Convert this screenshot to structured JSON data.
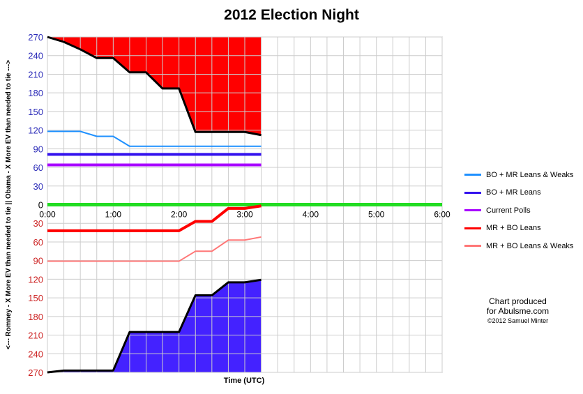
{
  "title": "2012 Election Night",
  "chart_data": {
    "type": "line",
    "title": "2012 Election Night",
    "xlabel": "Time (UTC)",
    "ylabel": "<--- Romney - X More EV than needed to tie || Obama - X More EV than needed to tie --->",
    "xlim": [
      0,
      6
    ],
    "ylim": [
      -270,
      270
    ],
    "grid": true,
    "x_tick_labels": [
      "0:00",
      "1:00",
      "2:00",
      "3:00",
      "4:00",
      "5:00",
      "6:00"
    ],
    "y_tick_labels": [
      "270",
      "240",
      "210",
      "180",
      "150",
      "120",
      "90",
      "60",
      "30",
      "0",
      "30",
      "60",
      "90",
      "120",
      "150",
      "180",
      "210",
      "240",
      "270"
    ],
    "y_tick_colors": [
      "#2b2bb8",
      "#2b2bb8",
      "#2b2bb8",
      "#2b2bb8",
      "#2b2bb8",
      "#2b2bb8",
      "#2b2bb8",
      "#2b2bb8",
      "#2b2bb8",
      "#000000",
      "#cc2222",
      "#cc2222",
      "#cc2222",
      "#cc2222",
      "#cc2222",
      "#cc2222",
      "#cc2222",
      "#cc2222",
      "#cc2222"
    ],
    "series": [
      {
        "name": "BO + MR Leans & Weaks",
        "color": "#1e90ff",
        "x": [
          0,
          0.5,
          0.75,
          1.0,
          1.25,
          3.25
        ],
        "y": [
          118,
          118,
          110,
          110,
          94,
          94
        ]
      },
      {
        "name": "BO + MR Leans",
        "color": "#3311ee",
        "x": [
          0,
          3.25
        ],
        "y": [
          81,
          81
        ]
      },
      {
        "name": "Current Polls",
        "color": "#a800ff",
        "x": [
          0,
          3.25
        ],
        "y": [
          64,
          64
        ]
      },
      {
        "name": "MR + BO Leans",
        "color": "#ff0000",
        "x": [
          0,
          2.0,
          2.25,
          2.5,
          2.75,
          3.0,
          3.25
        ],
        "y": [
          -42,
          -42,
          -27,
          -27,
          -6,
          -6,
          -2
        ]
      },
      {
        "name": "MR + BO Leans & Weaks",
        "color": "#ff7777",
        "x": [
          0,
          2.0,
          2.25,
          2.5,
          2.75,
          3.0,
          3.25
        ],
        "y": [
          -91,
          -91,
          -75,
          -75,
          -57,
          -57,
          -52
        ]
      }
    ],
    "zero_line": {
      "color": "#22dd22",
      "x": [
        0,
        6
      ],
      "y": [
        0,
        0
      ]
    },
    "top_boundary": {
      "color": "#000000",
      "x": [
        0,
        0.25,
        0.5,
        0.75,
        1.0,
        1.25,
        1.5,
        1.75,
        2.0,
        2.25,
        2.5,
        2.75,
        3.0,
        3.25
      ],
      "y": [
        270,
        262,
        250,
        236,
        236,
        213,
        213,
        187,
        187,
        117,
        117,
        117,
        117,
        112
      ],
      "fill": "#ff0000"
    },
    "bottom_boundary": {
      "color": "#000000",
      "x": [
        0,
        0.25,
        0.5,
        0.75,
        1.0,
        1.25,
        1.5,
        1.75,
        2.0,
        2.25,
        2.5,
        2.75,
        3.0,
        3.25
      ],
      "y": [
        -270,
        -267,
        -267,
        -267,
        -267,
        -205,
        -205,
        -205,
        -205,
        -146,
        -146,
        -125,
        -125,
        -121
      ],
      "fill": "#4422ff"
    },
    "legend_position": "right"
  },
  "legend": [
    {
      "label": "BO + MR Leans & Weaks",
      "color": "#1e90ff"
    },
    {
      "label": "BO + MR Leans",
      "color": "#3311ee"
    },
    {
      "label": "Current Polls",
      "color": "#a800ff"
    },
    {
      "label": "MR + BO Leans",
      "color": "#ff0000"
    },
    {
      "label": "MR + BO Leans & Weaks",
      "color": "#ff7777"
    }
  ],
  "credit": {
    "line1": "Chart produced",
    "line2": "for Abulsme.com",
    "line3": "©2012 Samuel Minter"
  }
}
